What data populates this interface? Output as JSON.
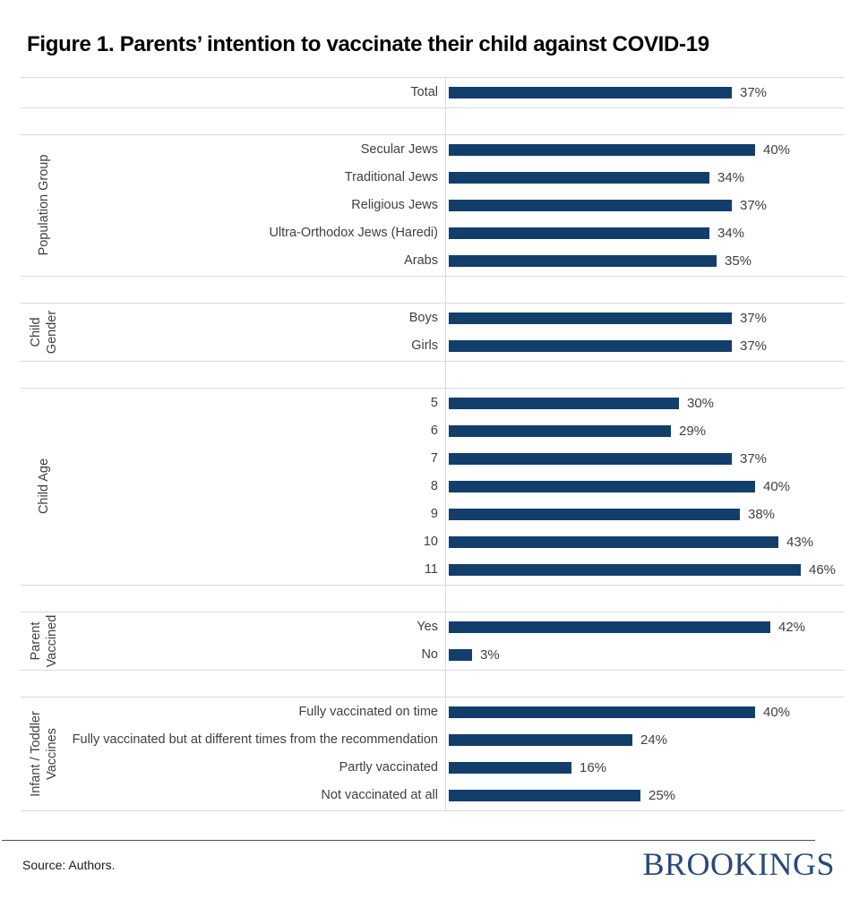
{
  "title": "Figure 1. Parents’ intention to vaccinate their child against COVID-19",
  "source_label": "Source: Authors.",
  "logo_text": "BROOKINGS",
  "colors": {
    "bar": "#123E6C",
    "grid_line": "#D9D9D9",
    "footer_divider": "#4B4F58",
    "logo_navy": "#29497B",
    "label_text": "#3F3F3F",
    "title_text": "#000000"
  },
  "chart_data": {
    "type": "bar",
    "orientation": "horizontal",
    "unit": "%",
    "xlim": [
      0,
      50
    ],
    "grid": false,
    "legend": "none",
    "value_labels": true,
    "title": "Figure 1. Parents’ intention to vaccinate their child against COVID-19",
    "xlabel": "",
    "ylabel": "",
    "sections": [
      {
        "group_lines": [],
        "items": [
          {
            "label": "Total",
            "value": 37,
            "value_label": "37%"
          }
        ]
      },
      {
        "group_lines": [
          "Population Group"
        ],
        "items": [
          {
            "label": "Secular Jews",
            "value": 40,
            "value_label": "40%"
          },
          {
            "label": "Traditional Jews",
            "value": 34,
            "value_label": "34%"
          },
          {
            "label": "Religious Jews",
            "value": 37,
            "value_label": "37%"
          },
          {
            "label": "Ultra-Orthodox Jews (Haredi)",
            "value": 34,
            "value_label": "34%"
          },
          {
            "label": "Arabs",
            "value": 35,
            "value_label": "35%"
          }
        ]
      },
      {
        "group_lines": [
          "Child",
          "Gender"
        ],
        "items": [
          {
            "label": "Boys",
            "value": 37,
            "value_label": "37%"
          },
          {
            "label": "Girls",
            "value": 37,
            "value_label": "37%"
          }
        ]
      },
      {
        "group_lines": [
          "Child Age"
        ],
        "items": [
          {
            "label": "5",
            "value": 30,
            "value_label": "30%"
          },
          {
            "label": "6",
            "value": 29,
            "value_label": "29%"
          },
          {
            "label": "7",
            "value": 37,
            "value_label": "37%"
          },
          {
            "label": "8",
            "value": 40,
            "value_label": "40%"
          },
          {
            "label": "9",
            "value": 38,
            "value_label": "38%"
          },
          {
            "label": "10",
            "value": 43,
            "value_label": "43%"
          },
          {
            "label": "11",
            "value": 46,
            "value_label": "46%"
          }
        ]
      },
      {
        "group_lines": [
          "Parent",
          "Vaccined"
        ],
        "items": [
          {
            "label": "Yes",
            "value": 42,
            "value_label": "42%"
          },
          {
            "label": "No",
            "value": 3,
            "value_label": "3%"
          }
        ]
      },
      {
        "group_lines": [
          "Infant / Toddler",
          "Vaccines"
        ],
        "items": [
          {
            "label": "Fully vaccinated on time",
            "value": 40,
            "value_label": "40%"
          },
          {
            "label": "Fully vaccinated but at different times from the recommendation",
            "value": 24,
            "value_label": "24%"
          },
          {
            "label": "Partly vaccinated",
            "value": 16,
            "value_label": "16%"
          },
          {
            "label": "Not vaccinated at all",
            "value": 25,
            "value_label": "25%"
          }
        ]
      }
    ]
  }
}
